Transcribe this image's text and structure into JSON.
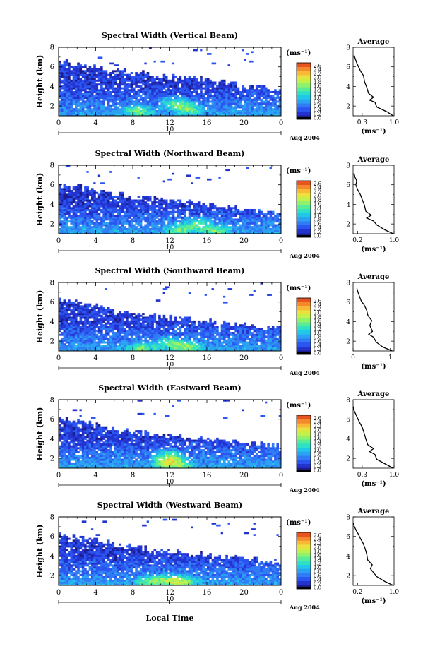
{
  "figure": {
    "xlabel": "Local Time",
    "colors": [
      "#1c1c8c",
      "#2233d0",
      "#2b55f0",
      "#2f7cf5",
      "#2aa3f2",
      "#22c7e8",
      "#2ee0c6",
      "#58ec98",
      "#90f16a",
      "#c4f04a",
      "#e9e23e",
      "#f7b936",
      "#f58a2c",
      "#e85420"
    ],
    "colorbar": {
      "unit": "(ms⁻¹)",
      "ticks": [
        "2.6",
        "2.4",
        "2.2",
        "2.0",
        "1.8",
        "1.6",
        "1.4",
        "1.2",
        "1.0",
        "0.8",
        "0.6",
        "0.4",
        "0.2",
        "0.0"
      ]
    }
  },
  "chart_data": [
    {
      "type": "heatmap",
      "title": "Spectral Width (Vertical Beam)",
      "ylabel": "Height (km)",
      "x_ticks": [
        "0",
        "4",
        "8",
        "12",
        "16",
        "20",
        "0"
      ],
      "xlim": [
        0,
        24
      ],
      "ylim": [
        1,
        8
      ],
      "y_ticks": [
        "2",
        "4",
        "6",
        "8"
      ],
      "date_marker": "10",
      "date_label": "Aug 2004",
      "cloud_top": [
        6.6,
        6.5,
        6.3,
        6.1,
        5.9,
        5.8,
        5.7,
        5.6,
        5.5,
        5.4,
        5.2,
        5.1,
        5.0,
        5.0,
        4.9,
        4.8,
        4.7,
        4.5,
        4.4,
        4.2,
        4.1,
        4.0,
        3.9,
        3.8,
        3.7
      ],
      "hot_spots": [
        [
          8.5,
          1.5
        ],
        [
          12.5,
          2.3
        ],
        [
          14,
          1.7
        ]
      ],
      "average": {
        "title": "Average",
        "xlabel": "(ms⁻¹)",
        "x_ticks": [
          "0.3",
          "1.0"
        ],
        "xlim": [
          0.1,
          1.0
        ],
        "ylim": [
          1,
          8
        ],
        "y_ticks": [
          "2",
          "4",
          "6",
          "8"
        ],
        "profile": [
          [
            0.98,
            1.0
          ],
          [
            0.85,
            1.4
          ],
          [
            0.62,
            1.9
          ],
          [
            0.58,
            2.4
          ],
          [
            0.46,
            2.6
          ],
          [
            0.55,
            2.9
          ],
          [
            0.44,
            3.3
          ],
          [
            0.4,
            3.9
          ],
          [
            0.35,
            4.5
          ],
          [
            0.33,
            5.1
          ],
          [
            0.26,
            5.6
          ],
          [
            0.22,
            6.0
          ],
          [
            0.18,
            6.4
          ],
          [
            0.15,
            6.8
          ],
          [
            0.12,
            7.2
          ]
        ]
      }
    },
    {
      "type": "heatmap",
      "title": "Spectral Width (Northward Beam)",
      "ylabel": "Height (km)",
      "x_ticks": [
        "0",
        "4",
        "8",
        "12",
        "16",
        "20",
        "0"
      ],
      "xlim": [
        0,
        24
      ],
      "ylim": [
        1,
        8
      ],
      "y_ticks": [
        "2",
        "4",
        "6",
        "8"
      ],
      "date_marker": "10",
      "date_label": "Aug 2004",
      "cloud_top": [
        6.0,
        5.9,
        5.8,
        5.7,
        5.4,
        5.2,
        5.0,
        4.9,
        4.8,
        4.7,
        4.6,
        4.5,
        4.4,
        4.4,
        4.3,
        4.2,
        4.0,
        3.9,
        3.8,
        3.6,
        3.5,
        3.4,
        3.3,
        3.2,
        3.1
      ],
      "hot_spots": [
        [
          13,
          1.4
        ],
        [
          15,
          2.0
        ],
        [
          17,
          1.3
        ]
      ],
      "average": {
        "title": "Average",
        "xlabel": "(ms⁻¹)",
        "x_ticks": [
          "0.2",
          "1.0"
        ],
        "xlim": [
          0.1,
          1.0
        ],
        "ylim": [
          1,
          8
        ],
        "y_ticks": [
          "2",
          "4",
          "6",
          "8"
        ],
        "profile": [
          [
            0.98,
            1.0
          ],
          [
            0.8,
            1.4
          ],
          [
            0.62,
            1.9
          ],
          [
            0.55,
            2.3
          ],
          [
            0.4,
            2.6
          ],
          [
            0.5,
            2.9
          ],
          [
            0.38,
            3.3
          ],
          [
            0.35,
            3.9
          ],
          [
            0.3,
            4.5
          ],
          [
            0.26,
            5.0
          ],
          [
            0.2,
            5.5
          ],
          [
            0.16,
            6.0
          ],
          [
            0.18,
            6.4
          ],
          [
            0.14,
            6.8
          ],
          [
            0.12,
            7.2
          ]
        ]
      }
    },
    {
      "type": "heatmap",
      "title": "Spectral Width (Southward Beam)",
      "ylabel": "Height (km)",
      "x_ticks": [
        "0",
        "4",
        "8",
        "12",
        "16",
        "20",
        "0"
      ],
      "xlim": [
        0,
        24
      ],
      "ylim": [
        1,
        8
      ],
      "y_ticks": [
        "2",
        "4",
        "6",
        "8"
      ],
      "date_marker": "10",
      "date_label": "Aug 2004",
      "cloud_top": [
        6.3,
        6.2,
        6.0,
        5.8,
        5.6,
        5.4,
        5.2,
        5.0,
        4.9,
        4.8,
        4.6,
        4.5,
        4.4,
        4.3,
        4.2,
        4.1,
        4.0,
        3.9,
        3.8,
        3.7,
        3.6,
        3.5,
        3.4,
        3.3,
        3.2
      ],
      "hot_spots": [
        [
          9,
          1.3
        ],
        [
          12,
          1.8
        ],
        [
          14,
          1.4
        ]
      ],
      "average": {
        "title": "Average",
        "xlabel": "(ms⁻¹)",
        "x_ticks": [
          "0",
          "1"
        ],
        "xlim": [
          0,
          1.1
        ],
        "ylim": [
          1,
          8
        ],
        "y_ticks": [
          "2",
          "4",
          "6",
          "8"
        ],
        "profile": [
          [
            1.05,
            1.0
          ],
          [
            0.8,
            1.4
          ],
          [
            0.62,
            1.9
          ],
          [
            0.55,
            2.4
          ],
          [
            0.42,
            2.7
          ],
          [
            0.52,
            3.0
          ],
          [
            0.45,
            3.6
          ],
          [
            0.5,
            4.1
          ],
          [
            0.4,
            4.6
          ],
          [
            0.36,
            5.2
          ],
          [
            0.3,
            5.7
          ],
          [
            0.22,
            6.1
          ],
          [
            0.18,
            6.5
          ],
          [
            0.14,
            6.9
          ],
          [
            0.1,
            7.4
          ]
        ]
      }
    },
    {
      "type": "heatmap",
      "title": "Spectral Width (Eastward Beam)",
      "ylabel": "Height (km)",
      "x_ticks": [
        "0",
        "4",
        "8",
        "12",
        "16",
        "20",
        "0"
      ],
      "xlim": [
        0,
        24
      ],
      "ylim": [
        1,
        8
      ],
      "y_ticks": [
        "2",
        "4",
        "6",
        "8"
      ],
      "date_marker": "10",
      "date_label": "Aug 2004",
      "cloud_top": [
        6.1,
        6.0,
        5.8,
        5.6,
        5.5,
        5.3,
        5.0,
        4.9,
        4.8,
        4.7,
        4.6,
        4.5,
        4.4,
        4.3,
        4.2,
        4.1,
        4.0,
        3.9,
        3.8,
        3.7,
        3.6,
        3.5,
        3.4,
        3.3,
        3.2
      ],
      "hot_spots": [
        [
          11.5,
          1.6
        ],
        [
          12,
          2.3
        ],
        [
          13,
          1.4
        ]
      ],
      "average": {
        "title": "Average",
        "xlabel": "(ms⁻¹)",
        "x_ticks": [
          "0.3",
          "1.0"
        ],
        "xlim": [
          0.1,
          1.0
        ],
        "ylim": [
          1,
          8
        ],
        "y_ticks": [
          "2",
          "4",
          "6",
          "8"
        ],
        "profile": [
          [
            0.98,
            1.0
          ],
          [
            0.82,
            1.4
          ],
          [
            0.62,
            1.9
          ],
          [
            0.58,
            2.4
          ],
          [
            0.46,
            2.7
          ],
          [
            0.55,
            3.0
          ],
          [
            0.42,
            3.4
          ],
          [
            0.38,
            4.0
          ],
          [
            0.34,
            4.6
          ],
          [
            0.3,
            5.2
          ],
          [
            0.24,
            5.7
          ],
          [
            0.2,
            6.1
          ],
          [
            0.16,
            6.5
          ],
          [
            0.12,
            6.9
          ],
          [
            0.1,
            7.3
          ]
        ]
      }
    },
    {
      "type": "heatmap",
      "title": "Spectral Width (Westward Beam)",
      "ylabel": "Height (km)",
      "x_ticks": [
        "0",
        "4",
        "8",
        "12",
        "16",
        "20",
        "0"
      ],
      "xlim": [
        0,
        24
      ],
      "ylim": [
        1,
        8
      ],
      "y_ticks": [
        "2",
        "4",
        "6",
        "8"
      ],
      "date_marker": "10",
      "date_label": "Aug 2004",
      "cloud_top": [
        6.2,
        6.1,
        6.0,
        5.9,
        5.6,
        5.4,
        5.2,
        5.0,
        4.9,
        4.8,
        4.7,
        4.6,
        4.5,
        4.4,
        4.3,
        4.2,
        4.1,
        4.0,
        3.9,
        3.8,
        3.7,
        3.6,
        3.5,
        3.4,
        3.3
      ],
      "hot_spots": [
        [
          10,
          1.4
        ],
        [
          12,
          1.6
        ],
        [
          13.5,
          1.3
        ]
      ],
      "average": {
        "title": "Average",
        "xlabel": "(ms⁻¹)",
        "x_ticks": [
          "0.2",
          "1.0"
        ],
        "xlim": [
          0.1,
          1.0
        ],
        "ylim": [
          1,
          8
        ],
        "y_ticks": [
          "2",
          "4",
          "6",
          "8"
        ],
        "profile": [
          [
            0.98,
            1.0
          ],
          [
            0.8,
            1.4
          ],
          [
            0.62,
            1.9
          ],
          [
            0.55,
            2.3
          ],
          [
            0.48,
            2.7
          ],
          [
            0.52,
            3.1
          ],
          [
            0.42,
            3.6
          ],
          [
            0.4,
            4.2
          ],
          [
            0.36,
            4.8
          ],
          [
            0.32,
            5.3
          ],
          [
            0.26,
            5.8
          ],
          [
            0.22,
            6.2
          ],
          [
            0.17,
            6.6
          ],
          [
            0.13,
            7.0
          ],
          [
            0.1,
            7.4
          ]
        ]
      }
    }
  ]
}
